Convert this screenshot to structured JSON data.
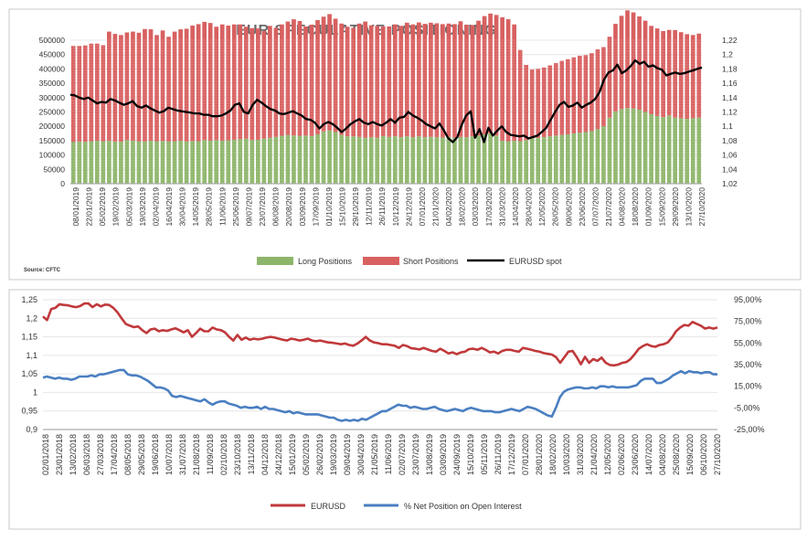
{
  "chart_data": [
    {
      "type": "bar",
      "title": "EUR SPECULATIVE POSITIONING",
      "source": "Source: CFTC",
      "ylim_left": [
        0,
        500000
      ],
      "yticks_left": [
        "500000",
        "450000",
        "400000",
        "350000",
        "300000",
        "250000",
        "200000",
        "150000",
        "100000",
        "50000",
        "0"
      ],
      "ylim_right": [
        1.02,
        1.22
      ],
      "yticks_right": [
        "1,22",
        "1,2",
        "1,18",
        "1,16",
        "1,14",
        "1,12",
        "1,1",
        "1,08",
        "1,06",
        "1,04",
        "1,02"
      ],
      "x_labels": [
        "08/01/2019",
        "22/01/2019",
        "05/02/2019",
        "19/02/2019",
        "05/03/2019",
        "19/03/2019",
        "02/04/2019",
        "16/04/2019",
        "30/04/2019",
        "14/05/2019",
        "28/05/2019",
        "11/06/2019",
        "25/06/2019",
        "09/07/2019",
        "23/07/2019",
        "06/08/2019",
        "20/08/2019",
        "03/09/2019",
        "17/09/2019",
        "01/10/2019",
        "15/10/2019",
        "29/10/2019",
        "12/11/2019",
        "26/11/2019",
        "10/12/2019",
        "24/12/2019",
        "07/01/2020",
        "21/01/2020",
        "04/02/2020",
        "18/02/2020",
        "03/03/2020",
        "17/03/2020",
        "31/03/2020",
        "14/04/2020",
        "28/04/2020",
        "12/05/2020",
        "26/05/2020",
        "09/06/2020",
        "23/06/2020",
        "07/07/2020",
        "21/07/2020",
        "04/08/2020",
        "18/08/2020",
        "01/09/2020",
        "15/09/2020",
        "29/09/2020",
        "13/10/2020",
        "27/10/2020"
      ],
      "series": [
        {
          "name": "Long Positions",
          "type": "bar",
          "color": "#8db56a",
          "values": [
            145000,
            147000,
            146000,
            148000,
            150000,
            148000,
            150000,
            147000,
            146000,
            152000,
            150000,
            148000,
            147000,
            150000,
            148000,
            149000,
            147000,
            148000,
            150000,
            147000,
            149000,
            148000,
            152000,
            150000,
            152000,
            150000,
            151000,
            153000,
            155000,
            157000,
            152000,
            153000,
            157000,
            160000,
            163000,
            167000,
            170000,
            168000,
            167000,
            168000,
            166000,
            172000,
            182000,
            186000,
            180000,
            170000,
            165000,
            165000,
            163000,
            160000,
            162000,
            160000,
            166000,
            163000,
            165000,
            162000,
            165000,
            162000,
            165000,
            162000,
            163000,
            162000,
            161000,
            163000,
            160000,
            163000,
            162000,
            165000,
            168000,
            172000,
            175000,
            168000,
            150000,
            148000,
            150000,
            148000,
            152000,
            158000,
            160000,
            162000,
            165000,
            168000,
            170000,
            172000,
            175000,
            178000,
            180000,
            183000,
            190000,
            200000,
            230000,
            252000,
            260000,
            264000,
            262000,
            258000,
            250000,
            242000,
            236000,
            232000,
            238000,
            230000,
            228000,
            226000,
            228000,
            230000
          ]
        },
        {
          "name": "Short Positions",
          "type": "bar",
          "color": "#d86060",
          "values": [
            335000,
            333000,
            336000,
            340000,
            338000,
            335000,
            380000,
            375000,
            372000,
            375000,
            380000,
            378000,
            392000,
            388000,
            370000,
            385000,
            365000,
            382000,
            388000,
            393000,
            402000,
            408000,
            412000,
            410000,
            395000,
            405000,
            400000,
            402000,
            400000,
            390000,
            390000,
            388000,
            375000,
            390000,
            380000,
            388000,
            395000,
            405000,
            400000,
            380000,
            388000,
            398000,
            400000,
            405000,
            395000,
            388000,
            382000,
            378000,
            395000,
            405000,
            390000,
            390000,
            382000,
            385000,
            390000,
            388000,
            396000,
            393000,
            397000,
            395000,
            398000,
            397000,
            395000,
            395000,
            396000,
            403000,
            392000,
            388000,
            400000,
            412000,
            418000,
            420000,
            430000,
            425000,
            405000,
            318000,
            262000,
            240000,
            240000,
            243000,
            247000,
            252000,
            258000,
            262000,
            265000,
            268000,
            268000,
            272000,
            278000,
            276000,
            282000,
            305000,
            325000,
            340000,
            335000,
            325000,
            318000,
            308000,
            305000,
            300000,
            298000,
            305000,
            300000,
            295000,
            290000,
            293000
          ]
        },
        {
          "name": "EURUSD spot",
          "type": "line",
          "color": "#000000",
          "values": [
            1.144,
            1.143,
            1.14,
            1.138,
            1.14,
            1.136,
            1.132,
            1.134,
            1.133,
            1.138,
            1.136,
            1.133,
            1.13,
            1.132,
            1.135,
            1.128,
            1.126,
            1.129,
            1.125,
            1.122,
            1.119,
            1.121,
            1.126,
            1.124,
            1.122,
            1.121,
            1.12,
            1.119,
            1.118,
            1.118,
            1.116,
            1.116,
            1.114,
            1.114,
            1.115,
            1.118,
            1.122,
            1.13,
            1.132,
            1.12,
            1.118,
            1.13,
            1.137,
            1.133,
            1.128,
            1.124,
            1.122,
            1.118,
            1.117,
            1.119,
            1.121,
            1.118,
            1.115,
            1.11,
            1.109,
            1.105,
            1.097,
            1.103,
            1.106,
            1.103,
            1.098,
            1.092,
            1.097,
            1.103,
            1.107,
            1.11,
            1.105,
            1.103,
            1.106,
            1.103,
            1.101,
            1.105,
            1.11,
            1.105,
            1.112,
            1.113,
            1.12,
            1.115,
            1.112,
            1.108,
            1.103,
            1.1,
            1.097,
            1.104,
            1.094,
            1.083,
            1.078,
            1.085,
            1.102,
            1.115,
            1.121,
            1.084,
            1.096,
            1.078,
            1.098,
            1.087,
            1.094,
            1.1,
            1.092,
            1.088,
            1.087,
            1.086,
            1.087,
            1.083,
            1.085,
            1.087,
            1.092,
            1.098,
            1.109,
            1.12,
            1.13,
            1.134,
            1.127,
            1.129,
            1.133,
            1.126,
            1.13,
            1.133,
            1.138,
            1.148,
            1.165,
            1.175,
            1.178,
            1.186,
            1.174,
            1.178,
            1.184,
            1.192,
            1.187,
            1.19,
            1.183,
            1.185,
            1.181,
            1.179,
            1.171,
            1.173,
            1.175,
            1.173,
            1.174,
            1.176,
            1.178,
            1.18,
            1.182
          ]
        }
      ]
    },
    {
      "type": "line",
      "ylim_left": [
        0.9,
        1.25
      ],
      "yticks_left": [
        "1,25",
        "1,2",
        "1,15",
        "1,1",
        "1,05",
        "1",
        "0,95",
        "0,9"
      ],
      "ylim_right": [
        -25,
        95
      ],
      "yticks_right": [
        "95,00%",
        "75,00%",
        "55,00%",
        "35,00%",
        "15,00%",
        "-5,00%",
        "-25,00%"
      ],
      "x_labels": [
        "02/01/2018",
        "23/01/2018",
        "13/02/2018",
        "06/03/2018",
        "27/03/2018",
        "17/04/2018",
        "08/05/2018",
        "29/05/2018",
        "19/06/2018",
        "10/07/2018",
        "31/07/2018",
        "21/08/2018",
        "11/09/2018",
        "02/10/2018",
        "23/10/2018",
        "13/11/2018",
        "04/12/2018",
        "24/12/2018",
        "15/01/2019",
        "05/02/2019",
        "26/02/2019",
        "19/03/2019",
        "09/04/2019",
        "30/04/2019",
        "21/05/2019",
        "11/06/2019",
        "02/07/2019",
        "23/07/2019",
        "13/08/2019",
        "03/09/2019",
        "24/09/2019",
        "15/10/2019",
        "05/11/2019",
        "26/11/2019",
        "17/12/2019",
        "07/01/2020",
        "28/01/2020",
        "18/02/2020",
        "10/03/2020",
        "31/03/2020",
        "21/04/2020",
        "12/05/2020",
        "02/06/2020",
        "23/06/2020",
        "14/07/2020",
        "04/08/2020",
        "25/08/2020",
        "15/09/2020",
        "06/10/2020",
        "27/10/2020"
      ],
      "series": [
        {
          "name": "EURUSD",
          "color": "#c0393b",
          "axis": "left",
          "values": [
            1.205,
            1.195,
            1.225,
            1.228,
            1.238,
            1.236,
            1.235,
            1.232,
            1.23,
            1.233,
            1.24,
            1.24,
            1.23,
            1.238,
            1.232,
            1.237,
            1.236,
            1.228,
            1.216,
            1.2,
            1.185,
            1.18,
            1.176,
            1.178,
            1.168,
            1.16,
            1.17,
            1.172,
            1.165,
            1.168,
            1.166,
            1.17,
            1.173,
            1.168,
            1.162,
            1.168,
            1.15,
            1.16,
            1.172,
            1.165,
            1.165,
            1.175,
            1.17,
            1.168,
            1.162,
            1.15,
            1.14,
            1.155,
            1.142,
            1.148,
            1.142,
            1.145,
            1.143,
            1.145,
            1.148,
            1.15,
            1.148,
            1.145,
            1.142,
            1.14,
            1.145,
            1.143,
            1.14,
            1.142,
            1.145,
            1.14,
            1.138,
            1.14,
            1.137,
            1.135,
            1.134,
            1.132,
            1.13,
            1.132,
            1.128,
            1.126,
            1.132,
            1.14,
            1.15,
            1.14,
            1.135,
            1.133,
            1.13,
            1.13,
            1.128,
            1.126,
            1.12,
            1.128,
            1.125,
            1.119,
            1.118,
            1.116,
            1.12,
            1.116,
            1.112,
            1.11,
            1.118,
            1.112,
            1.105,
            1.108,
            1.103,
            1.108,
            1.11,
            1.117,
            1.118,
            1.115,
            1.12,
            1.115,
            1.108,
            1.11,
            1.105,
            1.112,
            1.115,
            1.115,
            1.112,
            1.11,
            1.12,
            1.118,
            1.115,
            1.112,
            1.11,
            1.106,
            1.104,
            1.102,
            1.095,
            1.08,
            1.095,
            1.11,
            1.112,
            1.095,
            1.076,
            1.096,
            1.08,
            1.09,
            1.085,
            1.094,
            1.08,
            1.074,
            1.073,
            1.075,
            1.08,
            1.082,
            1.09,
            1.103,
            1.118,
            1.125,
            1.13,
            1.125,
            1.123,
            1.128,
            1.13,
            1.135,
            1.148,
            1.165,
            1.175,
            1.182,
            1.18,
            1.19,
            1.185,
            1.18,
            1.172,
            1.175,
            1.172,
            1.175
          ]
        },
        {
          "name": "% Net Position on Open Interest",
          "color": "#4a7fc1",
          "axis": "right",
          "values": [
            23,
            24,
            23,
            22,
            23,
            22,
            22,
            21,
            22,
            24,
            24,
            24,
            25,
            24,
            26,
            26,
            27,
            28,
            29,
            30,
            30,
            26,
            25,
            25,
            24,
            22,
            20,
            17,
            14,
            14,
            13,
            11,
            6,
            5,
            6,
            5,
            4,
            3,
            2,
            1,
            3,
            0,
            -2,
            0,
            1,
            1,
            -1,
            -2,
            -3,
            -5,
            -4,
            -5,
            -5,
            -4,
            -6,
            -4,
            -6,
            -6,
            -7,
            -8,
            -9,
            -8,
            -10,
            -9,
            -10,
            -11,
            -11,
            -11,
            -11,
            -12,
            -13,
            -14,
            -14,
            -16,
            -17,
            -16,
            -17,
            -16,
            -17,
            -15,
            -16,
            -14,
            -12,
            -10,
            -8,
            -8,
            -6,
            -4,
            -2,
            -3,
            -3,
            -5,
            -4,
            -5,
            -6,
            -6,
            -5,
            -4,
            -6,
            -7,
            -8,
            -7,
            -6,
            -7,
            -8,
            -6,
            -5,
            -6,
            -7,
            -8,
            -8,
            -8,
            -9,
            -9,
            -8,
            -7,
            -6,
            -7,
            -8,
            -6,
            -4,
            -5,
            -6,
            -8,
            -10,
            -12,
            -13,
            -5,
            5,
            10,
            12,
            13,
            14,
            14,
            13,
            13,
            14,
            13,
            15,
            15,
            14,
            15,
            14,
            14,
            14,
            14,
            15,
            16,
            20,
            22,
            22,
            22,
            18,
            18,
            20,
            22,
            25,
            27,
            29,
            27,
            29,
            28,
            28,
            27,
            28,
            28,
            26,
            26
          ]
        }
      ]
    }
  ]
}
